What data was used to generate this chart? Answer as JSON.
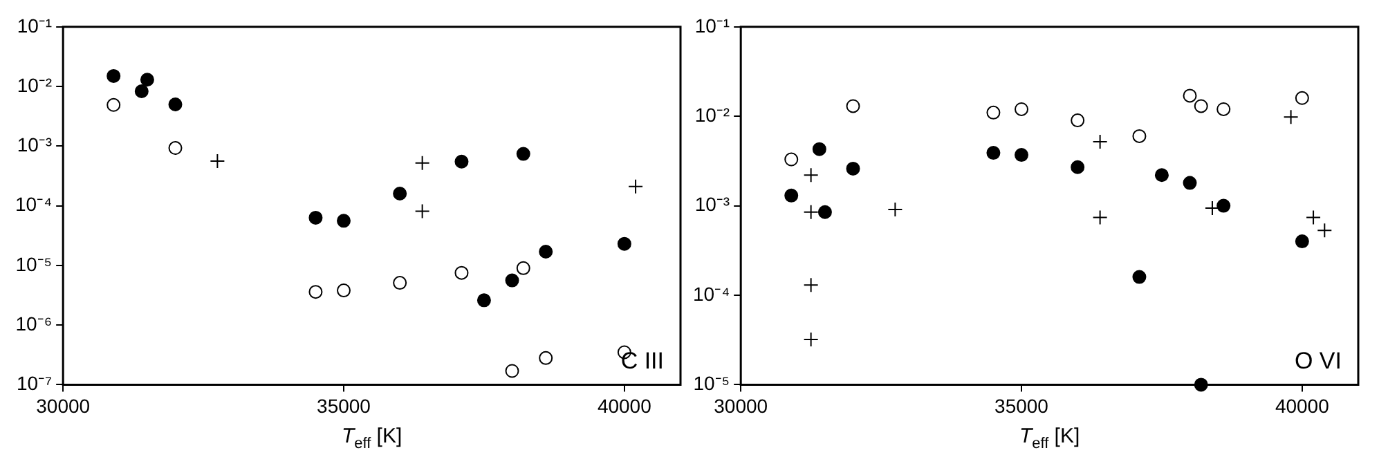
{
  "chart_data": [
    {
      "type": "scatter",
      "xlabel": "T$_{eff}$ [K]",
      "log": "y",
      "grid": false,
      "legend": false,
      "annotations": [
        "C III"
      ],
      "xlim": [
        30000,
        41000
      ],
      "xticks": [
        30000,
        35000,
        40000
      ],
      "ylim": [
        1e-07,
        0.1
      ],
      "yticks": [
        {
          "value": 1e-07,
          "label": "10⁻⁷"
        },
        {
          "value": 1e-06,
          "label": "10⁻⁶"
        },
        {
          "value": 1e-05,
          "label": "10⁻⁵"
        },
        {
          "value": 0.0001,
          "label": "10⁻⁴"
        },
        {
          "value": 0.001,
          "label": "10⁻³"
        },
        {
          "value": 0.01,
          "label": "10⁻²"
        },
        {
          "value": 0.1,
          "label": "10⁻¹"
        }
      ],
      "series": [
        {
          "marker": "circle",
          "color": "#000000",
          "x": [
            30900,
            31400,
            31500,
            32000,
            34500,
            35000,
            36000,
            37100,
            38200,
            37500,
            38000,
            38600,
            40000
          ],
          "values": [
            0.015,
            0.0083,
            0.013,
            0.005,
            6.3e-05,
            5.6e-05,
            0.00016,
            0.00055,
            0.00074,
            2.6e-06,
            5.6e-06,
            1.7e-05,
            2.3e-05
          ]
        },
        {
          "marker": "circle",
          "color": "#ffffff",
          "x": [
            30900,
            32000,
            34500,
            35000,
            36000,
            37100,
            38200,
            38000,
            38600,
            40000
          ],
          "values": [
            0.0049,
            0.00093,
            3.6e-06,
            3.8e-06,
            5.1e-06,
            7.5e-06,
            9e-06,
            1.7e-07,
            2.8e-07,
            3.5e-07
          ]
        },
        {
          "marker": "cross",
          "color": "#000000",
          "x": [
            32750,
            36400,
            36400,
            40200
          ],
          "values": [
            0.00056,
            0.00052,
            8.1e-05,
            0.00021
          ]
        }
      ]
    },
    {
      "type": "scatter",
      "xlabel": "T$_{eff}$ [K]",
      "log": "y",
      "grid": false,
      "legend": false,
      "annotations": [
        "O VI"
      ],
      "xlim": [
        30000,
        41000
      ],
      "xticks": [
        30000,
        35000,
        40000
      ],
      "ylim": [
        1e-05,
        0.1
      ],
      "yticks": [
        {
          "value": 1e-05,
          "label": "10⁻⁵"
        },
        {
          "value": 0.0001,
          "label": "10⁻⁴"
        },
        {
          "value": 0.001,
          "label": "10⁻³"
        },
        {
          "value": 0.01,
          "label": "10⁻²"
        },
        {
          "value": 0.1,
          "label": "10⁻¹"
        }
      ],
      "series": [
        {
          "marker": "circle",
          "color": "#000000",
          "x": [
            30900,
            31400,
            31500,
            32000,
            34500,
            35000,
            36000,
            37100,
            37500,
            38000,
            38600,
            38200,
            40000
          ],
          "values": [
            0.0013,
            0.0043,
            0.00085,
            0.0026,
            0.0039,
            0.0037,
            0.0027,
            0.00016,
            0.0022,
            0.0018,
            0.001,
            1e-05,
            0.0004
          ]
        },
        {
          "marker": "circle",
          "color": "#ffffff",
          "x": [
            30900,
            32000,
            34500,
            35000,
            36000,
            37100,
            38000,
            38200,
            38600,
            40000
          ],
          "values": [
            0.0033,
            0.013,
            0.011,
            0.012,
            0.009,
            0.006,
            0.017,
            0.013,
            0.012,
            0.016
          ]
        },
        {
          "marker": "cross",
          "color": "#000000",
          "x": [
            31250,
            31250,
            31250,
            31250,
            32750,
            36400,
            36400,
            38400,
            39800,
            40200,
            40400
          ],
          "values": [
            0.0022,
            0.00085,
            0.00013,
            3.2e-05,
            0.00091,
            0.0052,
            0.00074,
            0.00094,
            0.0098,
            0.00074,
            0.00053
          ]
        }
      ]
    }
  ]
}
